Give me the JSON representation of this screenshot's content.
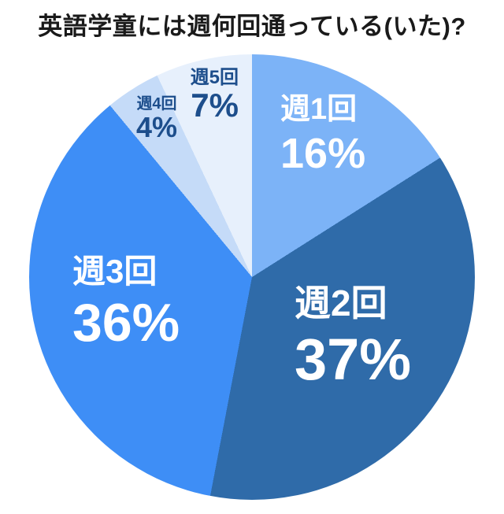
{
  "title": "英語学童には週何回通っている(いた)?",
  "chart_data": {
    "type": "pie",
    "title": "英語学童には週何回通っている(いた)?",
    "start_angle_deg": 0,
    "direction": "clockwise",
    "legend_position": "none",
    "labels_on_slices": true,
    "background_color": "#ffffff",
    "title_color": "#1a1a1a",
    "slices": [
      {
        "label": "週1回",
        "value_pct": 16,
        "pct_text": "16%",
        "color": "#7CB3F7",
        "label_color": "#FFFFFF"
      },
      {
        "label": "週2回",
        "value_pct": 37,
        "pct_text": "37%",
        "color": "#2F6BA9",
        "label_color": "#FFFFFF"
      },
      {
        "label": "週3回",
        "value_pct": 36,
        "pct_text": "36%",
        "color": "#3E8EF6",
        "label_color": "#FFFFFF"
      },
      {
        "label": "週4回",
        "value_pct": 4,
        "pct_text": "4%",
        "color": "#C5DBF8",
        "label_color": "#1D4E8C"
      },
      {
        "label": "週5回",
        "value_pct": 7,
        "pct_text": "7%",
        "color": "#E7F0FC",
        "label_color": "#1D4E8C"
      }
    ]
  }
}
